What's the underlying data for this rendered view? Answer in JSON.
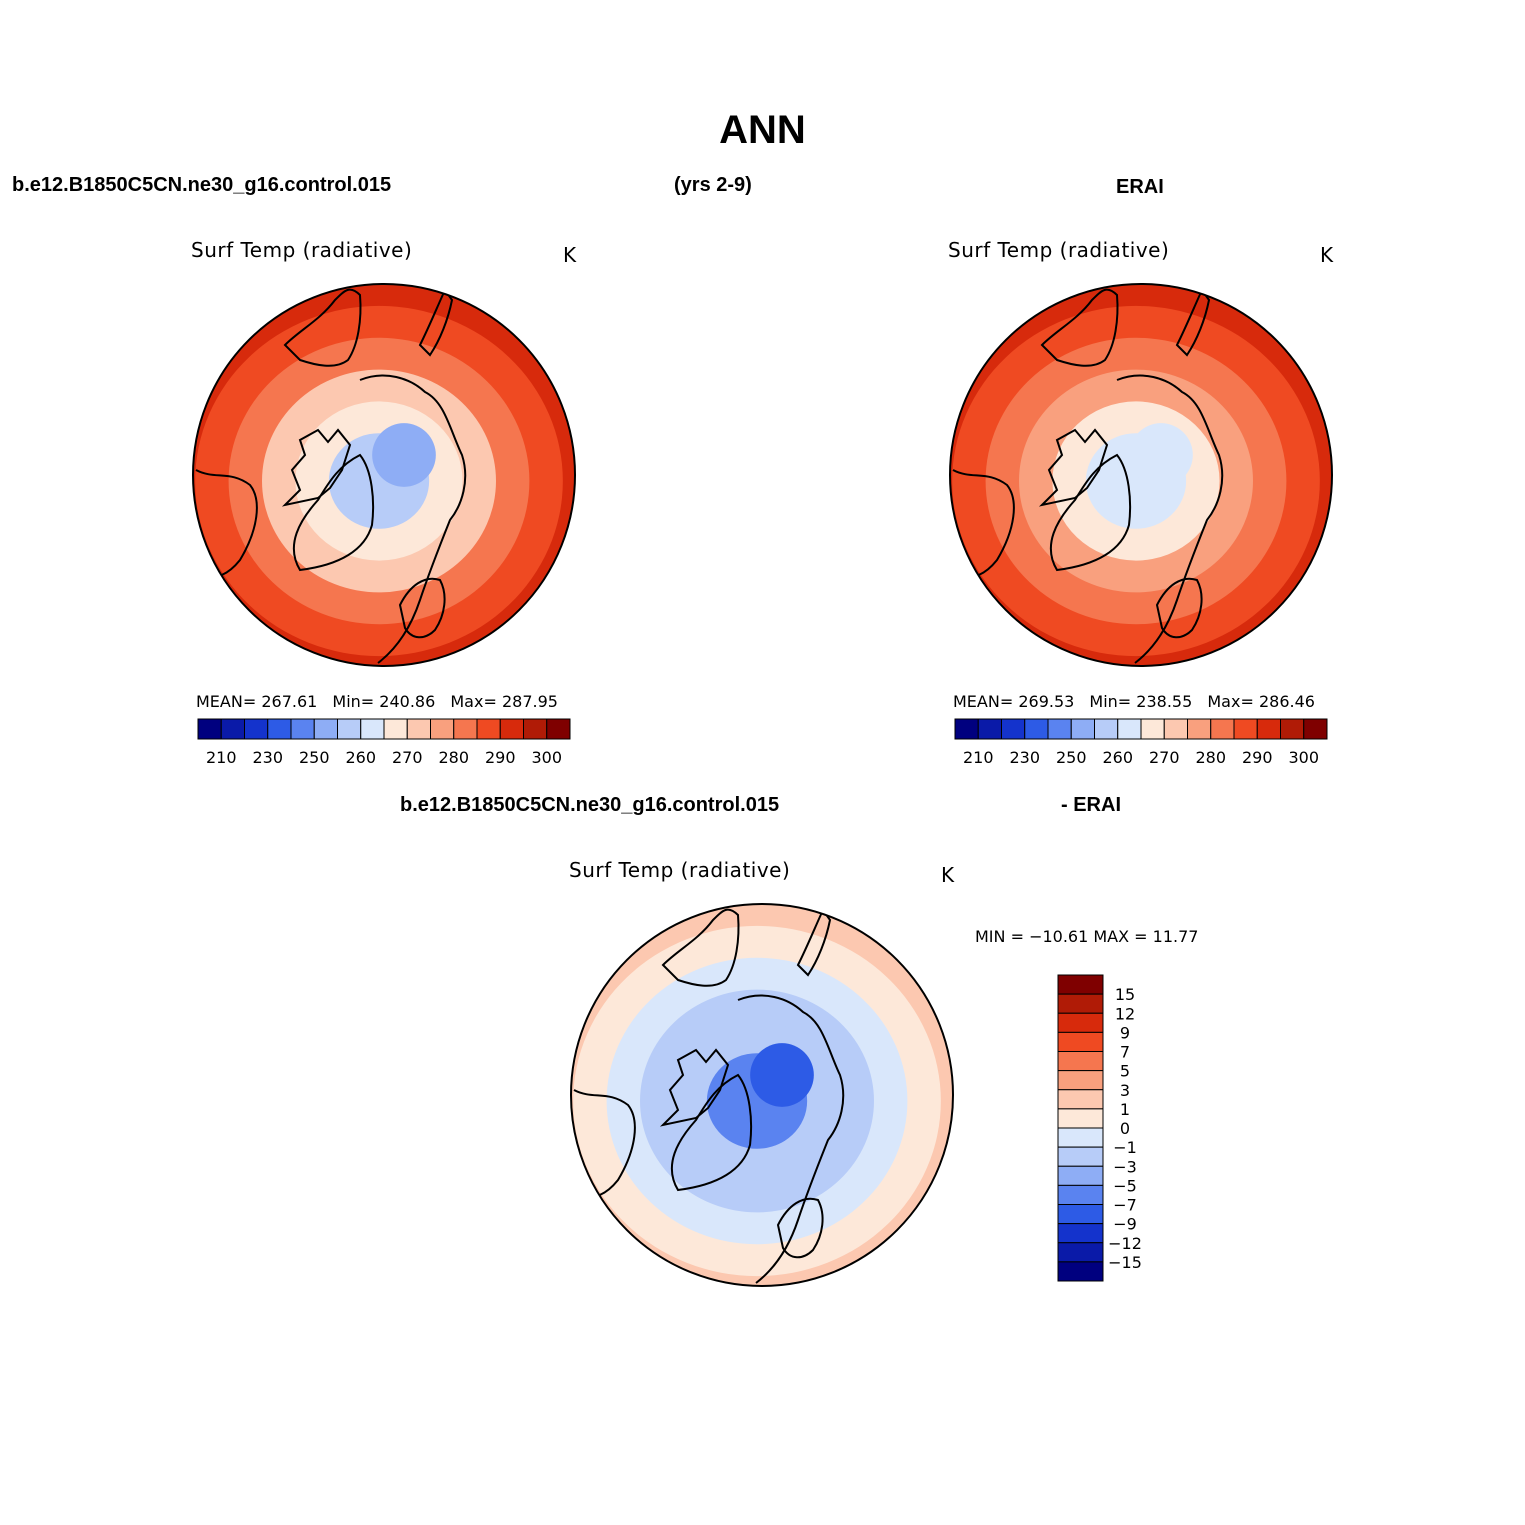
{
  "figure": {
    "title": "ANN",
    "case_name": "b.e12.B1850C5CN.ne30_g16.control.015",
    "years": "(yrs 2-9)",
    "obs_name": "ERAI",
    "diff_case_name": "b.e12.B1850C5CN.ne30_g16.control.015",
    "diff_obs_name": "- ERAI"
  },
  "panels": {
    "model": {
      "title": "Surf Temp (radiative)",
      "units": "K",
      "mean_label": "MEAN=",
      "mean": "267.61",
      "min_label": "Min=",
      "min": "240.86",
      "max_label": "Max=",
      "max": "287.95"
    },
    "obs": {
      "title": "Surf Temp (radiative)",
      "units": "K",
      "mean_label": "MEAN=",
      "mean": "269.53",
      "min_label": "Min=",
      "min": "238.55",
      "max_label": "Max=",
      "max": "286.46"
    },
    "diff": {
      "title": "Surf Temp (radiative)",
      "units": "K",
      "minmax": "MIN = −10.61  MAX =   11.77"
    }
  },
  "colors": {
    "abs_scale": [
      "#00007f",
      "#0a1aa8",
      "#1433cc",
      "#2d5be6",
      "#5a83f0",
      "#8eadf5",
      "#b7ccf8",
      "#d9e7fb",
      "#fde8d9",
      "#fcc8b0",
      "#f9a07e",
      "#f5764f",
      "#ef4a22",
      "#d72a0c",
      "#b01b06",
      "#7f0000"
    ],
    "diff_scale": [
      "#00007f",
      "#0a1aa8",
      "#1433cc",
      "#2d5be6",
      "#5a83f0",
      "#8eadf5",
      "#b7ccf8",
      "#d9e7fb",
      "#fde8d9",
      "#fcc8b0",
      "#f9a07e",
      "#f5764f",
      "#ef4a22",
      "#d72a0c",
      "#b01b06",
      "#7f0000"
    ]
  },
  "chart_data": [
    {
      "type": "heatmap",
      "projection": "north polar stereographic",
      "title": "Surf Temp (radiative)",
      "units": "K",
      "source": "b.e12.B1850C5CN.ne30_g16.control.015",
      "mean": 267.61,
      "min": 240.86,
      "max": 287.95,
      "colorbar_ticks": [
        "210",
        "230",
        "250",
        "260",
        "270",
        "280",
        "290",
        "300"
      ],
      "field_rings": [
        {
          "lat": 90,
          "value": 248
        },
        {
          "lat": 80,
          "value": 252
        },
        {
          "lat": 70,
          "value": 260
        },
        {
          "lat": 60,
          "value": 268
        },
        {
          "lat": 50,
          "value": 277
        },
        {
          "lat": 40,
          "value": 283
        },
        {
          "lat": 30,
          "value": 287
        }
      ]
    },
    {
      "type": "heatmap",
      "projection": "north polar stereographic",
      "title": "Surf Temp (radiative)",
      "units": "K",
      "source": "ERAI",
      "mean": 269.53,
      "min": 238.55,
      "max": 286.46,
      "colorbar_ticks": [
        "210",
        "230",
        "250",
        "260",
        "270",
        "280",
        "290",
        "300"
      ],
      "field_rings": [
        {
          "lat": 90,
          "value": 256
        },
        {
          "lat": 80,
          "value": 258
        },
        {
          "lat": 70,
          "value": 263
        },
        {
          "lat": 60,
          "value": 270
        },
        {
          "lat": 50,
          "value": 277
        },
        {
          "lat": 40,
          "value": 282
        },
        {
          "lat": 30,
          "value": 285
        }
      ]
    },
    {
      "type": "heatmap",
      "projection": "north polar stereographic",
      "title": "Surf Temp (radiative)",
      "units": "K",
      "source": "b.e12.B1850C5CN.ne30_g16.control.015 - ERAI",
      "min": -10.61,
      "max": 11.77,
      "colorbar_ticks": [
        "15",
        "12",
        "9",
        "7",
        "5",
        "3",
        "1",
        "0",
        "−1",
        "−3",
        "−5",
        "−7",
        "−9",
        "−12",
        "−15"
      ],
      "field_rings": [
        {
          "lat": 90,
          "value": -8
        },
        {
          "lat": 80,
          "value": -6
        },
        {
          "lat": 70,
          "value": -3
        },
        {
          "lat": 60,
          "value": -1.5
        },
        {
          "lat": 50,
          "value": -0.5
        },
        {
          "lat": 40,
          "value": 0.5
        },
        {
          "lat": 30,
          "value": 1
        }
      ]
    }
  ]
}
